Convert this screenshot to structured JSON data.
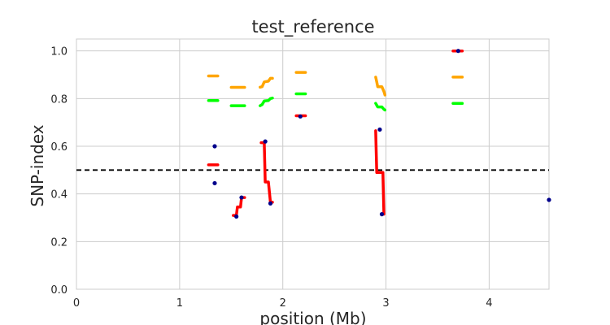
{
  "chart_data": {
    "type": "scatter",
    "title": "test_reference",
    "xlabel": "position (Mb)",
    "ylabel": "SNP-index",
    "xlim": [
      0,
      4.58
    ],
    "ylim": [
      0,
      1.05
    ],
    "xticks": [
      0,
      1,
      2,
      3,
      4
    ],
    "xtick_labels": [
      "0",
      "1",
      "2",
      "3",
      "4"
    ],
    "yticks": [
      0.0,
      0.2,
      0.4,
      0.6,
      0.8,
      1.0
    ],
    "ytick_labels": [
      "0.0",
      "0.2",
      "0.4",
      "0.6",
      "0.8",
      "1.0"
    ],
    "grid": true,
    "threshold": {
      "y": 0.5,
      "style": "dashed",
      "color": "#000000"
    },
    "points": {
      "color": "#00008b",
      "x": [
        1.34,
        1.34,
        1.55,
        1.6,
        1.83,
        1.88,
        2.17,
        2.94,
        2.96,
        3.7,
        4.58
      ],
      "y": [
        0.6,
        0.445,
        0.305,
        0.385,
        0.62,
        0.36,
        0.725,
        0.67,
        0.315,
        1.0,
        0.375
      ]
    },
    "series": [
      {
        "color": "#ffa500",
        "segments": [
          [
            [
              1.28,
              0.895
            ],
            [
              1.37,
              0.895
            ]
          ],
          [
            [
              1.5,
              0.847
            ],
            [
              1.63,
              0.847
            ]
          ],
          [
            [
              1.78,
              0.848
            ],
            [
              1.8,
              0.85
            ],
            [
              1.82,
              0.87
            ],
            [
              1.86,
              0.873
            ],
            [
              1.88,
              0.885
            ],
            [
              1.9,
              0.885
            ]
          ],
          [
            [
              2.13,
              0.91
            ],
            [
              2.22,
              0.91
            ]
          ],
          [
            [
              2.9,
              0.89
            ],
            [
              2.91,
              0.87
            ],
            [
              2.92,
              0.85
            ],
            [
              2.96,
              0.85
            ],
            [
              2.98,
              0.83
            ],
            [
              2.99,
              0.815
            ]
          ],
          [
            [
              3.65,
              0.89
            ],
            [
              3.74,
              0.89
            ]
          ]
        ]
      },
      {
        "color": "#00ff00",
        "segments": [
          [
            [
              1.28,
              0.792
            ],
            [
              1.37,
              0.792
            ]
          ],
          [
            [
              1.5,
              0.77
            ],
            [
              1.63,
              0.77
            ]
          ],
          [
            [
              1.78,
              0.77
            ],
            [
              1.8,
              0.775
            ],
            [
              1.82,
              0.79
            ],
            [
              1.86,
              0.792
            ],
            [
              1.88,
              0.8
            ],
            [
              1.9,
              0.802
            ]
          ],
          [
            [
              2.13,
              0.82
            ],
            [
              2.22,
              0.82
            ]
          ],
          [
            [
              2.9,
              0.78
            ],
            [
              2.91,
              0.772
            ],
            [
              2.92,
              0.765
            ],
            [
              2.96,
              0.765
            ],
            [
              2.98,
              0.755
            ],
            [
              2.99,
              0.752
            ]
          ],
          [
            [
              3.65,
              0.78
            ],
            [
              3.74,
              0.78
            ]
          ]
        ]
      },
      {
        "color": "#ff0000",
        "segments": [
          [
            [
              1.28,
              0.522
            ],
            [
              1.37,
              0.522
            ]
          ],
          [
            [
              1.52,
              0.31
            ],
            [
              1.55,
              0.31
            ],
            [
              1.56,
              0.345
            ],
            [
              1.59,
              0.345
            ],
            [
              1.6,
              0.385
            ],
            [
              1.63,
              0.385
            ]
          ],
          [
            [
              1.79,
              0.615
            ],
            [
              1.82,
              0.615
            ],
            [
              1.83,
              0.45
            ],
            [
              1.86,
              0.45
            ],
            [
              1.88,
              0.365
            ],
            [
              1.9,
              0.365
            ]
          ],
          [
            [
              2.13,
              0.728
            ],
            [
              2.22,
              0.728
            ]
          ],
          [
            [
              2.9,
              0.665
            ],
            [
              2.91,
              0.49
            ],
            [
              2.97,
              0.49
            ],
            [
              2.98,
              0.315
            ]
          ],
          [
            [
              3.65,
              1.0
            ],
            [
              3.74,
              1.0
            ]
          ]
        ]
      }
    ]
  }
}
